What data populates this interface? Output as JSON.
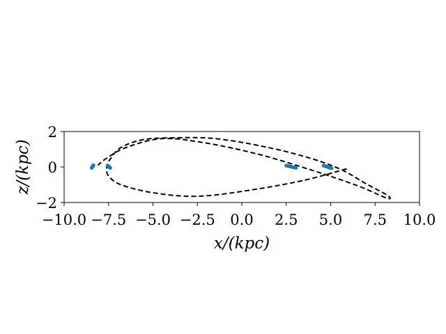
{
  "chart_data": {
    "type": "scatter",
    "xlabel": "x/(kpc)",
    "ylabel": "z/(kpc)",
    "xlim": [
      -10,
      10
    ],
    "ylim": [
      -2,
      2
    ],
    "xticks": [
      -10,
      -7.5,
      -5,
      -2.5,
      0,
      2.5,
      5,
      7.5,
      10
    ],
    "xtick_labels": [
      "−10.0",
      "−7.5",
      "−5.0",
      "−2.5",
      "0.0",
      "2.5",
      "5.0",
      "7.5",
      "10.0"
    ],
    "yticks": [
      -2,
      0,
      2
    ],
    "ytick_labels": [
      "−2",
      "0",
      "2"
    ],
    "colors": {
      "points": "#1f77b4",
      "orbit": "#000000"
    },
    "grid": false,
    "orbit_path": {
      "x": [
        5.9,
        3.5,
        0.5,
        -2.5,
        -5.0,
        -6.8,
        -7.5,
        -7.6,
        -7.4,
        -6.8,
        -5.5,
        -3.5,
        -1.5,
        1.0,
        3.5,
        5.5,
        7.0,
        8.2,
        8.15,
        6.5,
        4.0,
        1.0,
        -2.0,
        -4.5,
        -6.5,
        -7.6,
        -8.1
      ],
      "z": [
        -0.1,
        -0.75,
        -1.3,
        -1.65,
        -1.45,
        -1.0,
        -0.5,
        0.0,
        0.45,
        1.1,
        1.55,
        1.65,
        1.6,
        1.2,
        0.6,
        -0.1,
        -0.95,
        -1.6,
        -1.75,
        -1.05,
        -0.2,
        0.7,
        1.35,
        1.6,
        1.1,
        0.5,
        0.1
      ]
    },
    "point_clusters": [
      {
        "x0": -8.45,
        "z0": -0.05,
        "x1": -8.35,
        "z1": 0.1
      },
      {
        "x0": -7.55,
        "z0": 0.07,
        "x1": -7.4,
        "z1": -0.05
      },
      {
        "x0": 2.5,
        "z0": 0.08,
        "x1": 3.05,
        "z1": -0.05
      },
      {
        "x0": 4.6,
        "z0": 0.08,
        "x1": 5.05,
        "z1": -0.07
      }
    ]
  }
}
